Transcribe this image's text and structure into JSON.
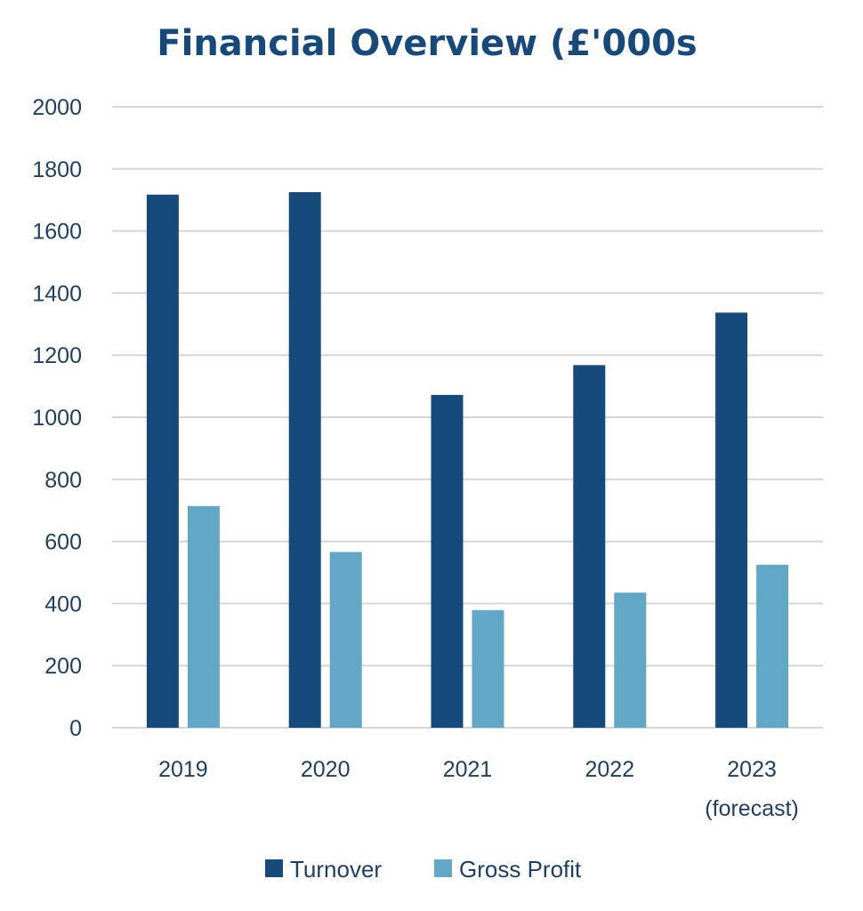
{
  "chart_data": {
    "type": "bar",
    "title": "Financial Overview (£'000s",
    "xlabel": "",
    "ylabel": "",
    "categories": [
      [
        "2019"
      ],
      [
        "2020"
      ],
      [
        "2021"
      ],
      [
        "2022"
      ],
      [
        "2023",
        "(forecast)"
      ]
    ],
    "series": [
      {
        "name": "Turnover",
        "color": "#174a7c",
        "values": [
          1717,
          1725,
          1072,
          1168,
          1337
        ]
      },
      {
        "name": "Gross Profit",
        "color": "#62a8c6",
        "values": [
          714,
          566,
          379,
          435,
          525
        ]
      }
    ],
    "ylim": [
      0,
      2000
    ],
    "yticks": [
      0,
      200,
      400,
      600,
      800,
      1000,
      1200,
      1400,
      1600,
      1800,
      2000
    ],
    "grid": true,
    "legend_position": "bottom",
    "colors": {
      "text": "#1e3f66",
      "title": "#174a7c",
      "grid": "#d6d6d6"
    }
  }
}
